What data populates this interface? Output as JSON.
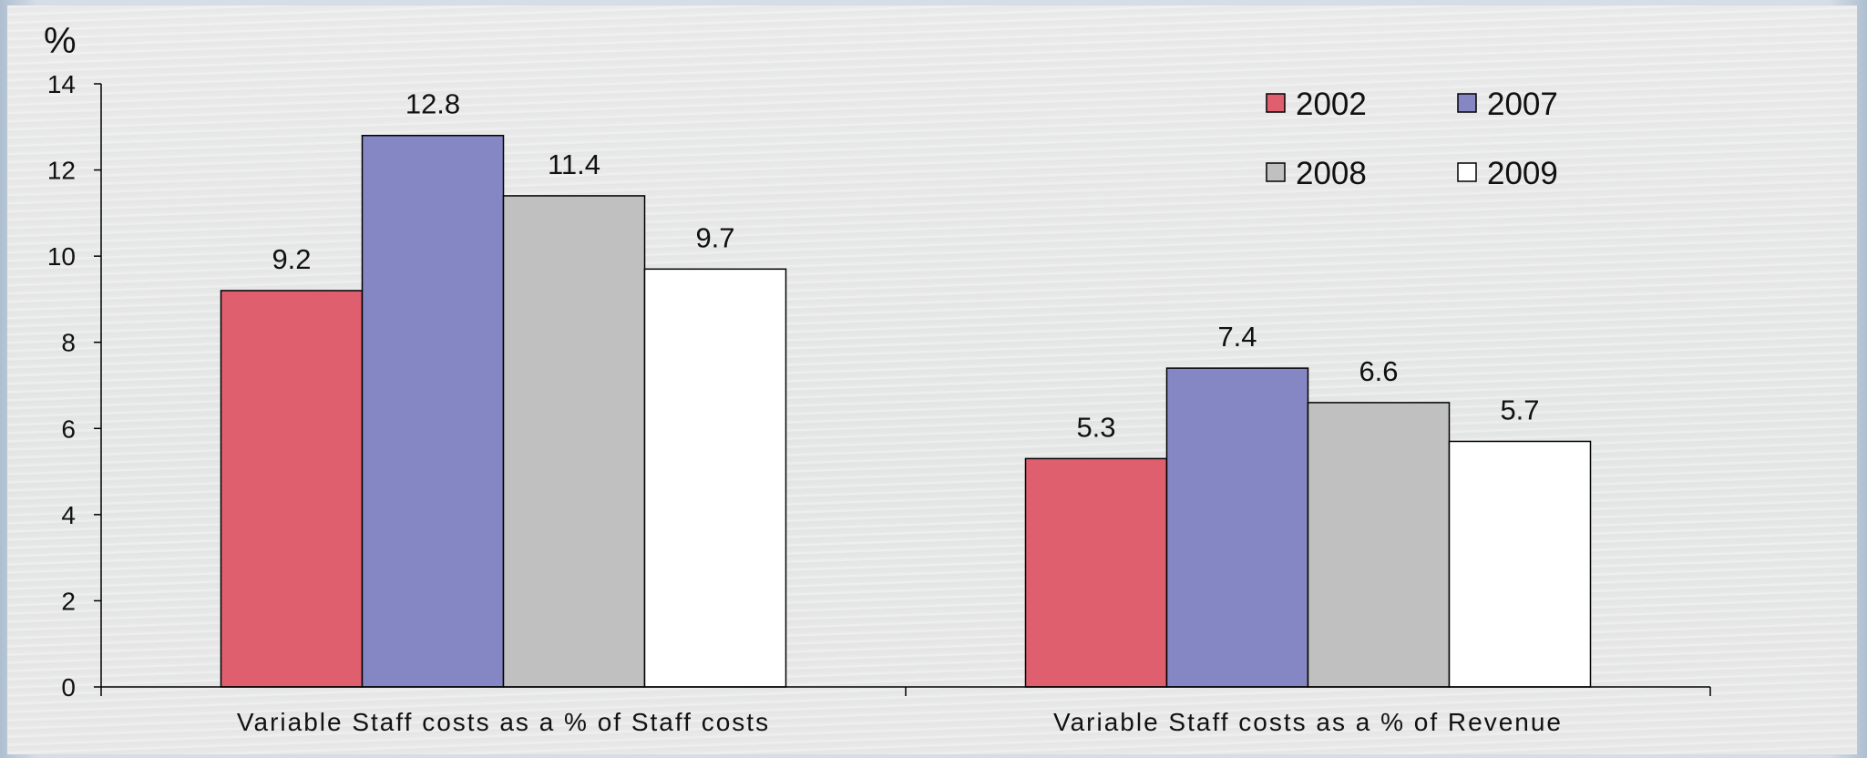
{
  "chart_data": {
    "type": "bar",
    "ylabel": "%",
    "ylim": [
      0,
      14
    ],
    "yticks": [
      0,
      2,
      4,
      6,
      8,
      10,
      12,
      14
    ],
    "categories": [
      "Variable Staff costs as a % of Staff costs",
      "Variable Staff costs as a % of Revenue"
    ],
    "series": [
      {
        "name": "2002",
        "color": "#e05f6f",
        "values": [
          9.2,
          5.3
        ],
        "labels": [
          "9.2",
          "5.3"
        ]
      },
      {
        "name": "2007",
        "color": "#8587c4",
        "values": [
          12.8,
          7.4
        ],
        "labels": [
          "12.8",
          "7.4"
        ]
      },
      {
        "name": "2008",
        "color": "#c0c0c0",
        "values": [
          11.4,
          6.6
        ],
        "labels": [
          "11.4",
          "6.6"
        ]
      },
      {
        "name": "2009",
        "color": "#ffffff",
        "values": [
          9.7,
          5.7
        ],
        "labels": [
          "9.7",
          "5.7"
        ]
      }
    ],
    "grid": false,
    "legend_position": "top-right",
    "legend_columns": 2
  }
}
